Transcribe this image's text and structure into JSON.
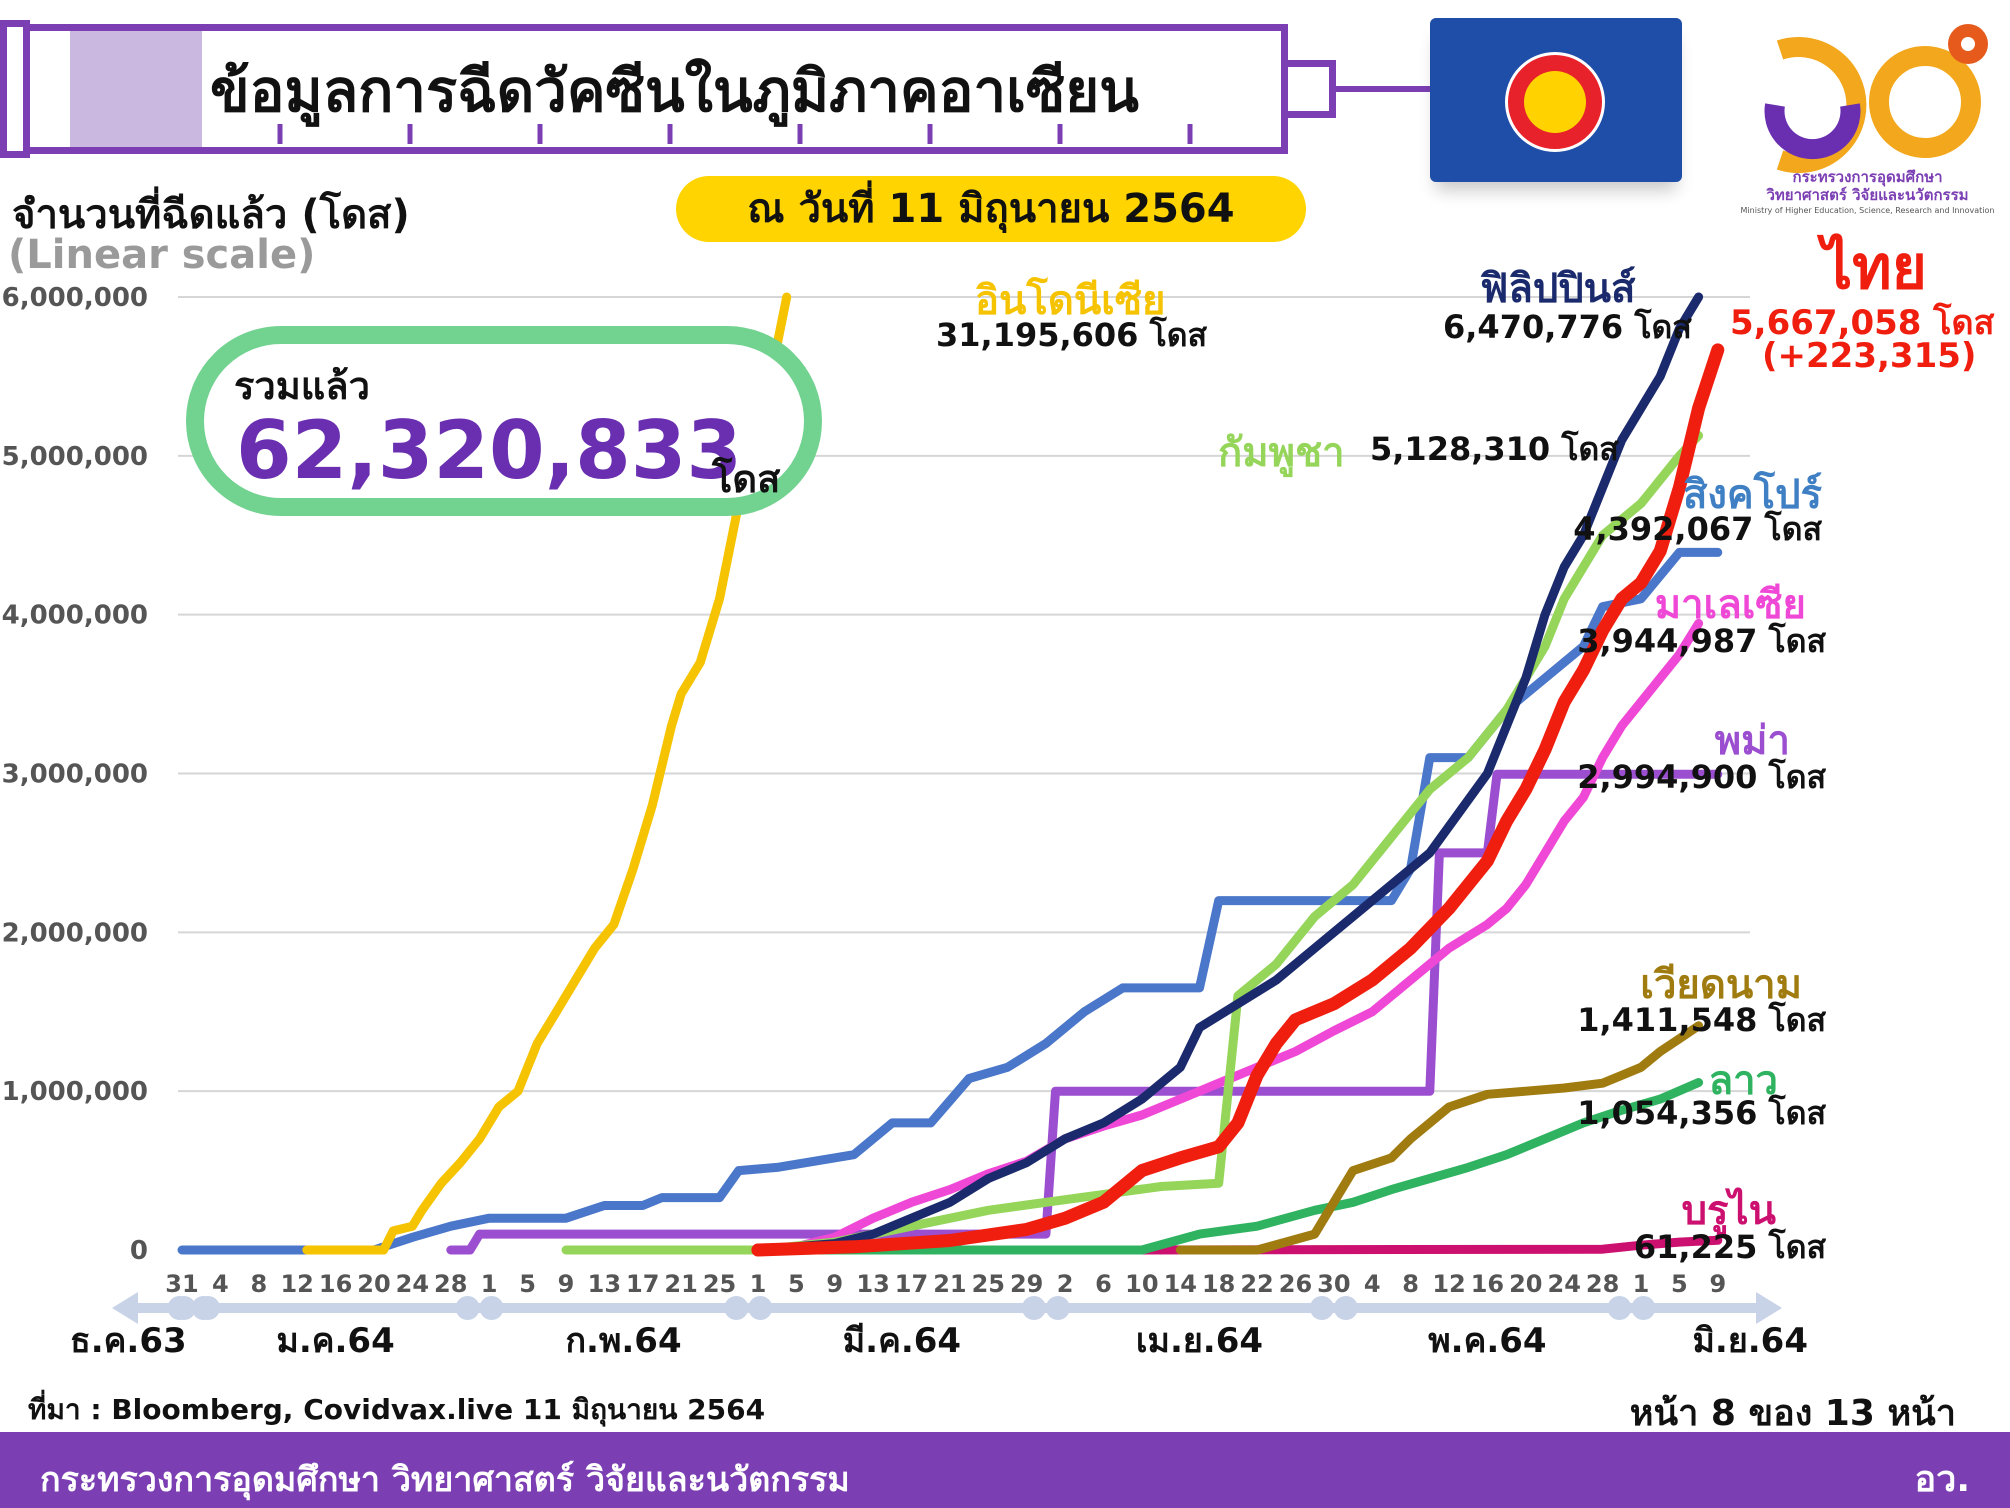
{
  "header": {
    "title": "ข้อมูลการฉีดวัคซีนในภูมิภาคอาเซียน",
    "date": "ณ วันที่ 11 มิถุนายน 2564"
  },
  "logo": {
    "ministry_th_line1": "กระทรวงการอุดมศึกษา",
    "ministry_th_line2": "วิทยาศาสตร์ วิจัยและนวัตกรรม",
    "ministry_en": "Ministry of Higher Education, Science, Research and Innovation"
  },
  "total": {
    "label": "รวมแล้ว",
    "value": "62,320,833",
    "unit": "โดส"
  },
  "footer": {
    "source": "ที่มา : Bloomberg, Covidvax.live 11 มิถุนายน 2564",
    "page": "หน้า 8 ของ 13 หน้า",
    "ministry": "กระทรวงการอุดมศึกษา วิทยาศาสตร์ วิจัยและนวัตกรรม",
    "abbr": "อว."
  },
  "colors": {
    "brand_purple": "#7b3fb3",
    "highlight_yellow": "#ffd400",
    "total_green": "#72d28f",
    "asean_blue": "#1f4ea8"
  },
  "chart_data": {
    "type": "line",
    "ylabel": "จำนวนที่ฉีดแล้ว (โดส)",
    "yscale_note": "(Linear scale)",
    "ylim": [
      0,
      6000000
    ],
    "yticks": [
      0,
      1000000,
      2000000,
      3000000,
      4000000,
      5000000,
      6000000
    ],
    "ytick_labels": [
      "0",
      "1,000,000",
      "2,000,000",
      "3,000,000",
      "4,000,000",
      "5,000,000",
      "6,000,000"
    ],
    "x_day_range": [
      0,
      162
    ],
    "x_day_ticks": [
      {
        "day": 0,
        "label": "31"
      },
      {
        "day": 4,
        "label": "4"
      },
      {
        "day": 8,
        "label": "8"
      },
      {
        "day": 12,
        "label": "12"
      },
      {
        "day": 16,
        "label": "16"
      },
      {
        "day": 20,
        "label": "20"
      },
      {
        "day": 24,
        "label": "24"
      },
      {
        "day": 28,
        "label": "28"
      },
      {
        "day": 32,
        "label": "1"
      },
      {
        "day": 36,
        "label": "5"
      },
      {
        "day": 40,
        "label": "9"
      },
      {
        "day": 44,
        "label": "13"
      },
      {
        "day": 48,
        "label": "17"
      },
      {
        "day": 52,
        "label": "21"
      },
      {
        "day": 56,
        "label": "25"
      },
      {
        "day": 60,
        "label": "1"
      },
      {
        "day": 64,
        "label": "5"
      },
      {
        "day": 68,
        "label": "9"
      },
      {
        "day": 72,
        "label": "13"
      },
      {
        "day": 76,
        "label": "17"
      },
      {
        "day": 80,
        "label": "21"
      },
      {
        "day": 84,
        "label": "25"
      },
      {
        "day": 88,
        "label": "29"
      },
      {
        "day": 92,
        "label": "2"
      },
      {
        "day": 96,
        "label": "6"
      },
      {
        "day": 100,
        "label": "10"
      },
      {
        "day": 104,
        "label": "14"
      },
      {
        "day": 108,
        "label": "18"
      },
      {
        "day": 112,
        "label": "22"
      },
      {
        "day": 116,
        "label": "26"
      },
      {
        "day": 120,
        "label": "30"
      },
      {
        "day": 124,
        "label": "4"
      },
      {
        "day": 128,
        "label": "8"
      },
      {
        "day": 132,
        "label": "12"
      },
      {
        "day": 136,
        "label": "16"
      },
      {
        "day": 140,
        "label": "20"
      },
      {
        "day": 144,
        "label": "24"
      },
      {
        "day": 148,
        "label": "28"
      },
      {
        "day": 152,
        "label": "1"
      },
      {
        "day": 156,
        "label": "5"
      },
      {
        "day": 160,
        "label": "9"
      }
    ],
    "month_labels": [
      {
        "label": "ธ.ค.63",
        "day": 0
      },
      {
        "label": "ม.ค.64",
        "day": 16
      },
      {
        "label": "ก.พ.64",
        "day": 46
      },
      {
        "label": "มี.ค.64",
        "day": 75
      },
      {
        "label": "เม.ย.64",
        "day": 106
      },
      {
        "label": "พ.ค.64",
        "day": 136
      },
      {
        "label": "มิ.ย.64",
        "day": 159
      }
    ],
    "month_dividers": [
      1,
      31,
      59,
      90,
      120,
      151
    ],
    "series": [
      {
        "name": "อินโดนีเซีย",
        "value_label": "31,195,606 โดส",
        "color": "#f5c300",
        "points": [
          [
            13,
            0
          ],
          [
            21,
            0
          ],
          [
            22,
            120000
          ],
          [
            24,
            150000
          ],
          [
            25,
            250000
          ],
          [
            27,
            420000
          ],
          [
            29,
            550000
          ],
          [
            31,
            700000
          ],
          [
            33,
            900000
          ],
          [
            35,
            1000000
          ],
          [
            37,
            1300000
          ],
          [
            39,
            1500000
          ],
          [
            41,
            1700000
          ],
          [
            43,
            1900000
          ],
          [
            45,
            2050000
          ],
          [
            47,
            2400000
          ],
          [
            49,
            2800000
          ],
          [
            51,
            3300000
          ],
          [
            52,
            3500000
          ],
          [
            54,
            3700000
          ],
          [
            56,
            4100000
          ],
          [
            58,
            4700000
          ],
          [
            60,
            5200000
          ],
          [
            62,
            5700000
          ],
          [
            63,
            6000000
          ]
        ]
      },
      {
        "name": "ฟิลิปปินส์",
        "value_label": "6,470,776 โดส",
        "color": "#1a2a6c",
        "points": [
          [
            60,
            0
          ],
          [
            68,
            40000
          ],
          [
            72,
            100000
          ],
          [
            76,
            200000
          ],
          [
            80,
            300000
          ],
          [
            84,
            450000
          ],
          [
            88,
            550000
          ],
          [
            92,
            700000
          ],
          [
            96,
            800000
          ],
          [
            100,
            950000
          ],
          [
            104,
            1150000
          ],
          [
            106,
            1400000
          ],
          [
            110,
            1550000
          ],
          [
            114,
            1700000
          ],
          [
            118,
            1900000
          ],
          [
            122,
            2100000
          ],
          [
            126,
            2300000
          ],
          [
            130,
            2500000
          ],
          [
            133,
            2750000
          ],
          [
            136,
            3000000
          ],
          [
            138,
            3300000
          ],
          [
            140,
            3600000
          ],
          [
            142,
            4000000
          ],
          [
            144,
            4300000
          ],
          [
            146,
            4500000
          ],
          [
            148,
            4800000
          ],
          [
            150,
            5100000
          ],
          [
            152,
            5300000
          ],
          [
            154,
            5500000
          ],
          [
            156,
            5800000
          ],
          [
            158,
            6000000
          ]
        ]
      },
      {
        "name": "ไทย",
        "value_label": "5,667,058 โดส",
        "extra_label": "(+223,315)",
        "color": "#f01e0e",
        "points": [
          [
            60,
            0
          ],
          [
            70,
            20000
          ],
          [
            80,
            60000
          ],
          [
            88,
            130000
          ],
          [
            92,
            200000
          ],
          [
            96,
            300000
          ],
          [
            100,
            500000
          ],
          [
            104,
            580000
          ],
          [
            108,
            650000
          ],
          [
            110,
            800000
          ],
          [
            112,
            1100000
          ],
          [
            114,
            1300000
          ],
          [
            116,
            1450000
          ],
          [
            118,
            1500000
          ],
          [
            120,
            1550000
          ],
          [
            124,
            1700000
          ],
          [
            128,
            1900000
          ],
          [
            132,
            2150000
          ],
          [
            136,
            2450000
          ],
          [
            138,
            2700000
          ],
          [
            140,
            2900000
          ],
          [
            142,
            3150000
          ],
          [
            144,
            3450000
          ],
          [
            146,
            3650000
          ],
          [
            148,
            3900000
          ],
          [
            150,
            4100000
          ],
          [
            152,
            4200000
          ],
          [
            154,
            4400000
          ],
          [
            156,
            4800000
          ],
          [
            158,
            5300000
          ],
          [
            160,
            5667058
          ]
        ]
      },
      {
        "name": "กัมพูชา",
        "value_label": "5,128,310 โดส",
        "color": "#95d55a",
        "points": [
          [
            40,
            0
          ],
          [
            60,
            0
          ],
          [
            68,
            50000
          ],
          [
            76,
            150000
          ],
          [
            84,
            250000
          ],
          [
            90,
            300000
          ],
          [
            96,
            350000
          ],
          [
            102,
            400000
          ],
          [
            108,
            420000
          ],
          [
            110,
            1600000
          ],
          [
            114,
            1800000
          ],
          [
            118,
            2100000
          ],
          [
            122,
            2300000
          ],
          [
            126,
            2600000
          ],
          [
            130,
            2900000
          ],
          [
            134,
            3100000
          ],
          [
            138,
            3400000
          ],
          [
            140,
            3600000
          ],
          [
            142,
            3800000
          ],
          [
            144,
            4100000
          ],
          [
            146,
            4300000
          ],
          [
            148,
            4500000
          ],
          [
            150,
            4600000
          ],
          [
            152,
            4700000
          ],
          [
            154,
            4850000
          ],
          [
            156,
            5000000
          ],
          [
            158,
            5128310
          ]
        ]
      },
      {
        "name": "สิงคโปร์",
        "value_label": "4,392,067 โดส",
        "color": "#4a77c9",
        "points": [
          [
            0,
            0
          ],
          [
            20,
            0
          ],
          [
            24,
            80000
          ],
          [
            28,
            150000
          ],
          [
            32,
            200000
          ],
          [
            40,
            200000
          ],
          [
            44,
            280000
          ],
          [
            48,
            280000
          ],
          [
            50,
            330000
          ],
          [
            56,
            330000
          ],
          [
            58,
            500000
          ],
          [
            62,
            520000
          ],
          [
            66,
            560000
          ],
          [
            70,
            600000
          ],
          [
            74,
            800000
          ],
          [
            78,
            800000
          ],
          [
            82,
            1080000
          ],
          [
            86,
            1150000
          ],
          [
            90,
            1300000
          ],
          [
            94,
            1500000
          ],
          [
            98,
            1650000
          ],
          [
            102,
            1650000
          ],
          [
            106,
            1650000
          ],
          [
            108,
            2200000
          ],
          [
            112,
            2200000
          ],
          [
            122,
            2200000
          ],
          [
            126,
            2200000
          ],
          [
            128,
            2400000
          ],
          [
            130,
            3100000
          ],
          [
            134,
            3100000
          ],
          [
            138,
            3400000
          ],
          [
            142,
            3600000
          ],
          [
            146,
            3800000
          ],
          [
            148,
            4050000
          ],
          [
            152,
            4100000
          ],
          [
            156,
            4392067
          ],
          [
            160,
            4392067
          ]
        ]
      },
      {
        "name": "มาเลเซีย",
        "value_label": "3,944,987 โดส",
        "color": "#f048d6",
        "points": [
          [
            60,
            0
          ],
          [
            64,
            20000
          ],
          [
            68,
            80000
          ],
          [
            72,
            200000
          ],
          [
            76,
            300000
          ],
          [
            80,
            380000
          ],
          [
            84,
            480000
          ],
          [
            88,
            560000
          ],
          [
            92,
            700000
          ],
          [
            96,
            780000
          ],
          [
            100,
            850000
          ],
          [
            104,
            950000
          ],
          [
            108,
            1050000
          ],
          [
            112,
            1150000
          ],
          [
            116,
            1250000
          ],
          [
            120,
            1380000
          ],
          [
            124,
            1500000
          ],
          [
            128,
            1700000
          ],
          [
            132,
            1900000
          ],
          [
            136,
            2050000
          ],
          [
            138,
            2150000
          ],
          [
            140,
            2300000
          ],
          [
            142,
            2500000
          ],
          [
            144,
            2700000
          ],
          [
            146,
            2850000
          ],
          [
            148,
            3100000
          ],
          [
            150,
            3300000
          ],
          [
            152,
            3450000
          ],
          [
            154,
            3600000
          ],
          [
            156,
            3750000
          ],
          [
            158,
            3944987
          ]
        ]
      },
      {
        "name": "พม่า",
        "value_label": "2,994,900 โดส",
        "color": "#9b4fd0",
        "points": [
          [
            28,
            0
          ],
          [
            30,
            0
          ],
          [
            31,
            100000
          ],
          [
            58,
            100000
          ],
          [
            90,
            100000
          ],
          [
            91,
            1000000
          ],
          [
            100,
            1000000
          ],
          [
            120,
            1000000
          ],
          [
            130,
            1000000
          ],
          [
            131,
            2500000
          ],
          [
            136,
            2500000
          ],
          [
            137,
            2994900
          ],
          [
            160,
            2994900
          ]
        ]
      },
      {
        "name": "เวียดนาม",
        "value_label": "1,411,548 โดส",
        "color": "#a07c10",
        "points": [
          [
            104,
            0
          ],
          [
            112,
            0
          ],
          [
            118,
            100000
          ],
          [
            122,
            500000
          ],
          [
            126,
            580000
          ],
          [
            128,
            700000
          ],
          [
            132,
            900000
          ],
          [
            136,
            980000
          ],
          [
            140,
            1000000
          ],
          [
            144,
            1020000
          ],
          [
            148,
            1050000
          ],
          [
            150,
            1100000
          ],
          [
            152,
            1150000
          ],
          [
            154,
            1250000
          ],
          [
            156,
            1330000
          ],
          [
            158,
            1411548
          ]
        ]
      },
      {
        "name": "ลาว",
        "value_label": "1,054,356 โดส",
        "color": "#2fb360",
        "points": [
          [
            60,
            0
          ],
          [
            100,
            0
          ],
          [
            106,
            100000
          ],
          [
            112,
            150000
          ],
          [
            118,
            250000
          ],
          [
            122,
            300000
          ],
          [
            126,
            380000
          ],
          [
            130,
            450000
          ],
          [
            134,
            520000
          ],
          [
            138,
            600000
          ],
          [
            142,
            700000
          ],
          [
            146,
            800000
          ],
          [
            150,
            880000
          ],
          [
            154,
            950000
          ],
          [
            158,
            1054356
          ]
        ]
      },
      {
        "name": "บรูไน",
        "value_label": "61,225 โดส",
        "color": "#cc1070",
        "points": [
          [
            98,
            0
          ],
          [
            148,
            5000
          ],
          [
            152,
            30000
          ],
          [
            156,
            50000
          ],
          [
            160,
            61225
          ]
        ]
      }
    ]
  }
}
